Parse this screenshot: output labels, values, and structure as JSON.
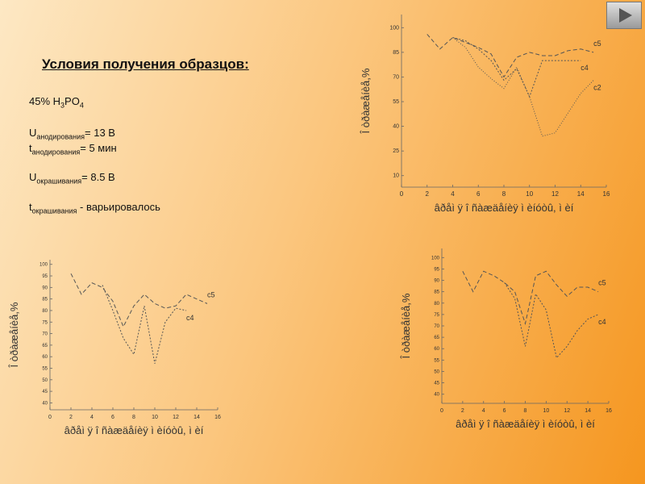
{
  "slide": {
    "title": "Условия получения образцов:",
    "lines": [
      [
        {
          "text": "45% H"
        },
        {
          "text": "3",
          "sub": true
        },
        {
          "text": "PO"
        },
        {
          "text": "4",
          "sub": true
        }
      ],
      [
        {
          "text": "U"
        },
        {
          "text": "анодирования",
          "sub": true
        },
        {
          "text": "= 13 В"
        }
      ],
      [
        {
          "text": "t"
        },
        {
          "text": "анодирования",
          "sub": true
        },
        {
          "text": "= 5 мин"
        }
      ],
      [
        {
          "text": "U"
        },
        {
          "text": "окрашивания",
          "sub": true
        },
        {
          "text": "= 8.5 В"
        }
      ],
      [
        {
          "text": "t"
        },
        {
          "text": "окрашивания",
          "sub": true
        },
        {
          "text": " - варьировалось"
        }
      ]
    ]
  },
  "chart_data": [
    {
      "type": "line",
      "x_label": "âðåì ÿ î ñàæäåíèÿ ì èíóòû, ì èí",
      "y_label": "Î òðàæåíèå,%",
      "x": [
        2,
        3,
        4,
        5,
        6,
        7,
        8,
        9,
        10,
        11,
        12,
        13,
        14,
        15
      ],
      "xlim": [
        0,
        16
      ],
      "xticks": [
        0,
        2,
        4,
        6,
        8,
        10,
        12,
        14,
        16
      ],
      "ylim": [
        3,
        108
      ],
      "yticks": [
        100,
        85,
        70,
        55,
        40,
        25,
        10
      ],
      "series": [
        {
          "name": "c5",
          "color": "#555555",
          "dash": "5,3",
          "values": [
            96,
            87,
            94,
            91,
            88,
            84,
            70,
            82,
            85,
            83,
            83,
            86,
            87,
            85
          ]
        },
        {
          "name": "c4",
          "color": "#555555",
          "dash": "2,2",
          "values": [
            null,
            null,
            94,
            92,
            87,
            80,
            68,
            75,
            58,
            80,
            80,
            80,
            80,
            null
          ]
        },
        {
          "name": "c2",
          "color": "#555555",
          "dash": "1,2",
          "values": [
            null,
            null,
            94,
            88,
            76,
            69,
            63,
            76,
            58,
            34,
            36,
            48,
            60,
            68
          ]
        }
      ]
    },
    {
      "type": "line",
      "x_label": "âðåì ÿ î ñàæäåíèÿ ì èíóòû, ì èí",
      "y_label": "Î òðàæåíèå,%",
      "x": [
        2,
        3,
        4,
        5,
        6,
        7,
        8,
        9,
        10,
        11,
        12,
        13,
        14,
        15
      ],
      "xlim": [
        0,
        16
      ],
      "xticks": [
        0,
        2,
        4,
        6,
        8,
        10,
        12,
        14,
        16
      ],
      "ylim": [
        37,
        102
      ],
      "yticks": [
        100,
        95,
        90,
        85,
        80,
        75,
        70,
        65,
        60,
        55,
        50,
        45,
        40
      ],
      "series": [
        {
          "name": "c5",
          "color": "#555555",
          "dash": "5,3",
          "values": [
            96,
            87,
            92,
            90,
            84,
            73,
            82,
            87,
            83,
            81,
            82,
            87,
            85,
            83
          ]
        },
        {
          "name": "c4",
          "color": "#555555",
          "dash": "2,2",
          "values": [
            null,
            null,
            null,
            91,
            80,
            68,
            61,
            82,
            57,
            75,
            81,
            80,
            null,
            null
          ]
        }
      ]
    },
    {
      "type": "line",
      "x_label": "âðåì ÿ î ñàæäåíèÿ ì èíóòû, ì èí",
      "y_label": "Î òðàæåíèå,%",
      "x": [
        2,
        3,
        4,
        5,
        6,
        7,
        8,
        9,
        10,
        11,
        12,
        13,
        14,
        15
      ],
      "xlim": [
        0,
        16
      ],
      "xticks": [
        0,
        2,
        4,
        6,
        8,
        10,
        12,
        14,
        16
      ],
      "ylim": [
        36,
        104
      ],
      "yticks": [
        100,
        95,
        90,
        85,
        80,
        75,
        70,
        65,
        60,
        55,
        50,
        45,
        40
      ],
      "series": [
        {
          "name": "c5",
          "color": "#555555",
          "dash": "5,3",
          "values": [
            94,
            85,
            94,
            92,
            89,
            85,
            71,
            92,
            94,
            88,
            83,
            87,
            87,
            85
          ]
        },
        {
          "name": "c4",
          "color": "#555555",
          "dash": "2,2",
          "values": [
            null,
            null,
            null,
            null,
            89,
            82,
            61,
            84,
            77,
            56,
            61,
            68,
            73,
            75
          ]
        }
      ]
    }
  ]
}
